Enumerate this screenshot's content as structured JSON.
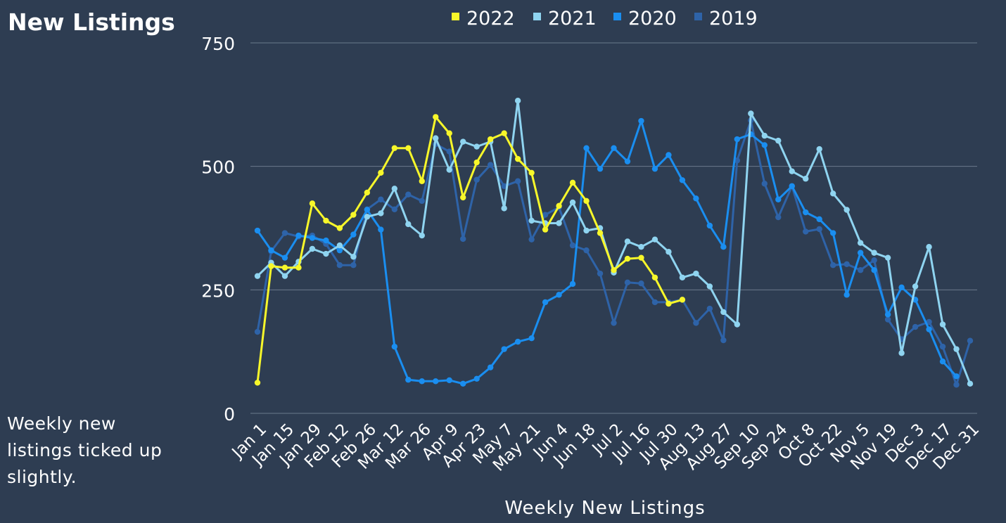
{
  "page": {
    "title": "New Listings",
    "subtitle": "Weekly new listings ticked up slightly."
  },
  "colors": {
    "background": "#2e3d52",
    "grid": "#6b7a8c",
    "text": "#ffffff"
  },
  "chart_data": {
    "type": "line",
    "title": "",
    "xlabel": "Weekly New Listings",
    "ylabel": "",
    "ylim": [
      0,
      750
    ],
    "yticks": [
      0,
      250,
      500,
      750
    ],
    "grid": true,
    "legend_position": "top",
    "x": [
      "Jan 1",
      "Jan 8",
      "Jan 15",
      "Jan 22",
      "Jan 29",
      "Feb 5",
      "Feb 12",
      "Feb 19",
      "Feb 26",
      "Mar 5",
      "Mar 12",
      "Mar 19",
      "Mar 26",
      "Apr 2",
      "Apr 9",
      "Apr 16",
      "Apr 23",
      "Apr 30",
      "May 7",
      "May 14",
      "May 21",
      "May 28",
      "Jun 4",
      "Jun 11",
      "Jun 18",
      "Jun 25",
      "Jul 2",
      "Jul 9",
      "Jul 16",
      "Jul 23",
      "Jul 30",
      "Aug 6",
      "Aug 13",
      "Aug 20",
      "Aug 27",
      "Sep 3",
      "Sep 10",
      "Sep 17",
      "Sep 24",
      "Oct 1",
      "Oct 8",
      "Oct 15",
      "Oct 22",
      "Oct 29",
      "Nov 5",
      "Nov 12",
      "Nov 19",
      "Nov 26",
      "Dec 3",
      "Dec 10",
      "Dec 17",
      "Dec 24",
      "Dec 31"
    ],
    "xtick_labels": [
      "Jan 1",
      "Jan 15",
      "Jan 29",
      "Feb 12",
      "Feb 26",
      "Mar 12",
      "Mar 26",
      "Apr 9",
      "Apr 23",
      "May 7",
      "May 21",
      "Jun 4",
      "Jun 18",
      "Jul 2",
      "Jul 16",
      "Jul 30",
      "Aug 13",
      "Aug 27",
      "Sep 10",
      "Sep 24",
      "Oct 8",
      "Oct 22",
      "Nov 5",
      "Nov 19",
      "Dec 3",
      "Dec 17",
      "Dec 31"
    ],
    "series": [
      {
        "name": "2022",
        "color": "#f7f72a",
        "values": [
          62,
          298,
          295,
          295,
          425,
          390,
          375,
          402,
          447,
          487,
          537,
          537,
          470,
          600,
          567,
          437,
          508,
          555,
          567,
          515,
          487,
          372,
          420,
          467,
          430,
          365,
          290,
          313,
          315,
          275,
          222,
          230,
          null,
          null,
          null,
          null,
          null,
          null,
          null,
          null,
          null,
          null,
          null,
          null,
          null,
          null,
          null,
          null,
          null,
          null,
          null,
          null,
          null
        ]
      },
      {
        "name": "2021",
        "color": "#8fd4f0",
        "values": [
          278,
          305,
          278,
          307,
          333,
          323,
          340,
          317,
          398,
          405,
          455,
          383,
          360,
          557,
          493,
          550,
          540,
          550,
          415,
          633,
          390,
          385,
          385,
          427,
          370,
          375,
          285,
          348,
          337,
          352,
          327,
          275,
          283,
          257,
          205,
          180,
          607,
          562,
          552,
          490,
          475,
          535,
          445,
          412,
          345,
          325,
          315,
          122,
          257,
          337,
          180,
          130,
          60
        ]
      },
      {
        "name": "2020",
        "color": "#1a8ef0",
        "values": [
          370,
          330,
          315,
          360,
          355,
          350,
          330,
          362,
          412,
          372,
          135,
          68,
          65,
          65,
          67,
          60,
          70,
          93,
          130,
          145,
          152,
          225,
          240,
          262,
          537,
          495,
          537,
          510,
          592,
          495,
          523,
          472,
          435,
          380,
          337,
          555,
          565,
          543,
          433,
          460,
          407,
          393,
          365,
          240,
          325,
          290,
          200,
          255,
          230,
          170,
          105,
          75,
          null
        ]
      },
      {
        "name": "2019",
        "color": "#2e63a8",
        "values": [
          165,
          328,
          365,
          358,
          360,
          343,
          300,
          300,
          413,
          433,
          413,
          443,
          430,
          545,
          530,
          353,
          473,
          503,
          460,
          470,
          352,
          402,
          417,
          340,
          330,
          283,
          183,
          265,
          263,
          225,
          225,
          230,
          183,
          212,
          148,
          512,
          593,
          465,
          397,
          460,
          368,
          373,
          300,
          302,
          290,
          310,
          190,
          150,
          175,
          185,
          135,
          58,
          147
        ]
      }
    ]
  }
}
